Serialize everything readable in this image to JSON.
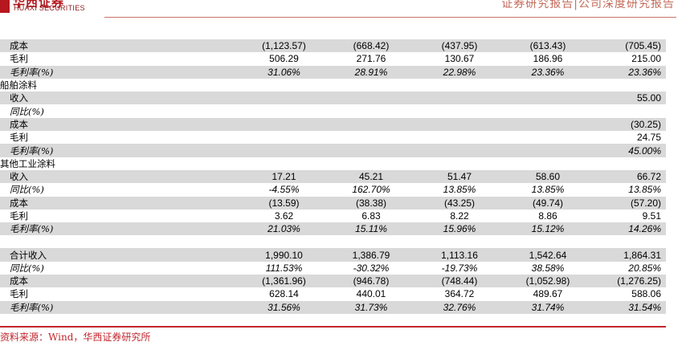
{
  "header": {
    "logo_cn": "华西证券",
    "logo_en": "HUAXI SECURITIES",
    "report_type": "证券研究报告|公司深度研究报告"
  },
  "table": {
    "rows": [
      {
        "label": "成本",
        "values": [
          "(1,123.57)",
          "(668.42)",
          "(437.95)",
          "(613.43)",
          "(705.45)"
        ],
        "shade": true,
        "italic": false,
        "section": false
      },
      {
        "label": "毛利",
        "values": [
          "506.29",
          "271.76",
          "130.67",
          "186.96",
          "215.00"
        ],
        "shade": false,
        "italic": false,
        "section": false
      },
      {
        "label": "毛利率(%)",
        "values": [
          "31.06%",
          "28.91%",
          "22.98%",
          "23.36%",
          "23.36%"
        ],
        "shade": true,
        "italic": true,
        "section": false
      },
      {
        "label": "船舶涂料",
        "values": [
          "",
          "",
          "",
          "",
          ""
        ],
        "shade": false,
        "italic": false,
        "section": true
      },
      {
        "label": "收入",
        "values": [
          "",
          "",
          "",
          "",
          "55.00"
        ],
        "shade": true,
        "italic": false,
        "section": false
      },
      {
        "label": "同比(%)",
        "values": [
          "",
          "",
          "",
          "",
          ""
        ],
        "shade": false,
        "italic": true,
        "section": false
      },
      {
        "label": "成本",
        "values": [
          "",
          "",
          "",
          "",
          "(30.25)"
        ],
        "shade": true,
        "italic": false,
        "section": false
      },
      {
        "label": "毛利",
        "values": [
          "",
          "",
          "",
          "",
          "24.75"
        ],
        "shade": false,
        "italic": false,
        "section": false
      },
      {
        "label": "毛利率(%)",
        "values": [
          "",
          "",
          "",
          "",
          "45.00%"
        ],
        "shade": true,
        "italic": true,
        "section": false
      },
      {
        "label": "其他工业涂料",
        "values": [
          "",
          "",
          "",
          "",
          ""
        ],
        "shade": false,
        "italic": false,
        "section": true
      },
      {
        "label": "收入",
        "values": [
          "17.21",
          "45.21",
          "51.47",
          "58.60",
          "66.72"
        ],
        "shade": true,
        "italic": false,
        "section": false
      },
      {
        "label": "同比(%)",
        "values": [
          "-4.55%",
          "162.70%",
          "13.85%",
          "13.85%",
          "13.85%"
        ],
        "shade": false,
        "italic": true,
        "section": false
      },
      {
        "label": "成本",
        "values": [
          "(13.59)",
          "(38.38)",
          "(43.25)",
          "(49.74)",
          "(57.20)"
        ],
        "shade": true,
        "italic": false,
        "section": false
      },
      {
        "label": "毛利",
        "values": [
          "3.62",
          "6.83",
          "8.22",
          "8.86",
          "9.51"
        ],
        "shade": false,
        "italic": false,
        "section": false
      },
      {
        "label": "毛利率(%)",
        "values": [
          "21.03%",
          "15.11%",
          "15.96%",
          "15.12%",
          "14.26%"
        ],
        "shade": true,
        "italic": true,
        "section": false
      },
      {
        "spacer": true
      },
      {
        "label": "合计收入",
        "values": [
          "1,990.10",
          "1,386.79",
          "1,113.16",
          "1,542.64",
          "1,864.31"
        ],
        "shade": true,
        "italic": false,
        "section": false
      },
      {
        "label": "同比(%)",
        "values": [
          "111.53%",
          "-30.32%",
          "-19.73%",
          "38.58%",
          "20.85%"
        ],
        "shade": false,
        "italic": true,
        "section": false
      },
      {
        "label": "成本",
        "values": [
          "(1,361.96)",
          "(946.78)",
          "(748.44)",
          "(1,052.98)",
          "(1,276.25)"
        ],
        "shade": true,
        "italic": false,
        "section": false
      },
      {
        "label": "毛利",
        "values": [
          "628.14",
          "440.01",
          "364.72",
          "489.67",
          "588.06"
        ],
        "shade": false,
        "italic": false,
        "section": false
      },
      {
        "label": "毛利率(%)",
        "values": [
          "31.56%",
          "31.73%",
          "32.76%",
          "31.74%",
          "31.54%"
        ],
        "shade": true,
        "italic": true,
        "section": false
      }
    ]
  },
  "footer": {
    "source": "资料来源：Wind，华西证券研究所"
  },
  "colors": {
    "brand_red": "#b7181f",
    "rule_red": "#c0272d",
    "header_text": "#c36b5a",
    "shade": "#d9d9d9"
  }
}
